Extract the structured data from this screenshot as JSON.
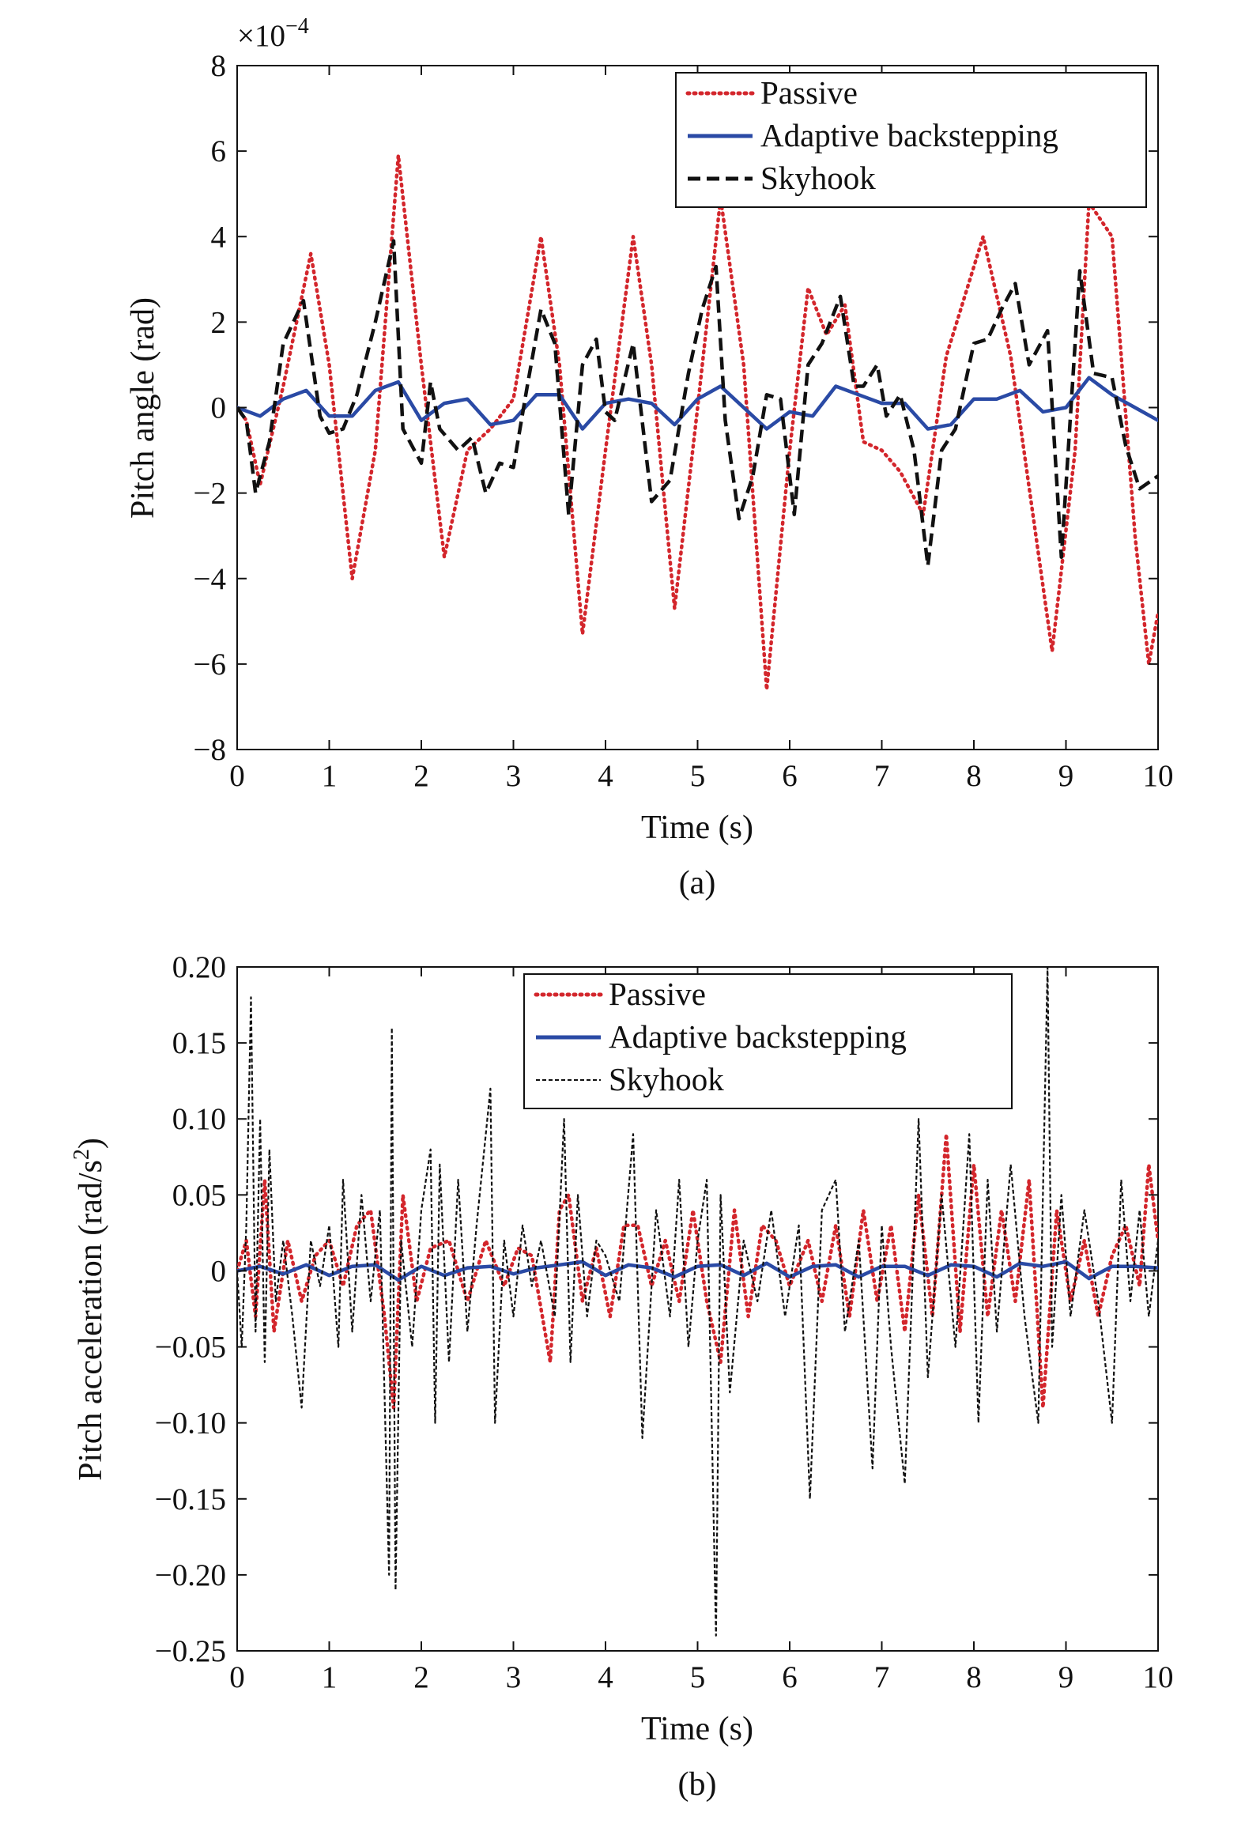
{
  "chart_data": [
    {
      "type": "line",
      "panel": "a",
      "caption": "(a)",
      "xlabel": "Time (s)",
      "ylabel": "Pitch angle (rad)",
      "y_multiplier": "×10",
      "y_multiplier_exp": "−4",
      "xlim": [
        0,
        10
      ],
      "ylim": [
        -8,
        8
      ],
      "xticks": [
        "0",
        "1",
        "2",
        "3",
        "4",
        "5",
        "6",
        "7",
        "8",
        "9",
        "10"
      ],
      "yticks": [
        "8",
        "6",
        "4",
        "2",
        "0",
        "−2",
        "−4",
        "−6",
        "−8"
      ],
      "legend_position": "top-right",
      "series": [
        {
          "name": "Passive",
          "color": "#d3262c",
          "style": "dotted",
          "x": [
            0,
            0.1,
            0.25,
            0.5,
            0.8,
            1.0,
            1.25,
            1.5,
            1.75,
            2.0,
            2.25,
            2.5,
            2.75,
            3.0,
            3.3,
            3.5,
            3.75,
            4.0,
            4.3,
            4.5,
            4.75,
            5.0,
            5.25,
            5.5,
            5.75,
            6.0,
            6.2,
            6.4,
            6.6,
            6.8,
            7.0,
            7.2,
            7.45,
            7.7,
            8.1,
            8.4,
            8.85,
            9.1,
            9.25,
            9.5,
            9.75,
            9.9,
            10.0
          ],
          "y": [
            0,
            -0.3,
            -1.8,
            0.5,
            3.6,
            1.0,
            -4.0,
            -1.0,
            5.9,
            1.0,
            -3.5,
            -1.0,
            -0.5,
            0.2,
            4.0,
            1.0,
            -5.3,
            -1.0,
            4.0,
            1.0,
            -4.7,
            0,
            4.9,
            1.0,
            -6.6,
            -1.0,
            2.8,
            1.7,
            2.4,
            -0.8,
            -1.0,
            -1.5,
            -2.5,
            1.2,
            4.0,
            1.2,
            -5.7,
            -1.0,
            4.8,
            4.0,
            -3.0,
            -6.0,
            -4.8
          ]
        },
        {
          "name": "Adaptive backstepping",
          "color": "#2a4aa5",
          "style": "solid",
          "x": [
            0,
            0.25,
            0.5,
            0.75,
            1.0,
            1.25,
            1.5,
            1.75,
            2.0,
            2.25,
            2.5,
            2.75,
            3.0,
            3.25,
            3.5,
            3.75,
            4.0,
            4.25,
            4.5,
            4.75,
            5.0,
            5.25,
            5.5,
            5.75,
            6.0,
            6.25,
            6.5,
            6.75,
            7.0,
            7.25,
            7.5,
            7.75,
            8.0,
            8.25,
            8.5,
            8.75,
            9.0,
            9.25,
            9.5,
            9.75,
            10.0
          ],
          "y": [
            0,
            -0.2,
            0.2,
            0.4,
            -0.2,
            -0.2,
            0.4,
            0.6,
            -0.3,
            0.1,
            0.2,
            -0.4,
            -0.3,
            0.3,
            0.3,
            -0.5,
            0.1,
            0.2,
            0.1,
            -0.4,
            0.2,
            0.5,
            0.0,
            -0.5,
            -0.1,
            -0.2,
            0.5,
            0.3,
            0.1,
            0.1,
            -0.5,
            -0.4,
            0.2,
            0.2,
            0.4,
            -0.1,
            0.0,
            0.7,
            0.3,
            0.0,
            -0.3
          ]
        },
        {
          "name": "Skyhook",
          "color": "#111111",
          "style": "dashed",
          "x": [
            0,
            0.1,
            0.2,
            0.35,
            0.5,
            0.72,
            0.9,
            1.0,
            1.15,
            1.3,
            1.5,
            1.7,
            1.8,
            2.0,
            2.1,
            2.2,
            2.4,
            2.55,
            2.7,
            2.85,
            3.0,
            3.15,
            3.3,
            3.45,
            3.6,
            3.75,
            3.9,
            4.0,
            4.1,
            4.3,
            4.5,
            4.7,
            4.9,
            5.05,
            5.2,
            5.3,
            5.45,
            5.6,
            5.75,
            5.9,
            6.05,
            6.2,
            6.35,
            6.55,
            6.7,
            6.8,
            6.95,
            7.05,
            7.2,
            7.35,
            7.5,
            7.65,
            7.8,
            8.0,
            8.15,
            8.3,
            8.45,
            8.6,
            8.8,
            8.95,
            9.15,
            9.3,
            9.5,
            9.65,
            9.8,
            10.0
          ],
          "y": [
            0,
            -0.3,
            -2.0,
            -0.8,
            1.5,
            2.5,
            -0.2,
            -0.6,
            -0.5,
            0.3,
            2.0,
            3.9,
            -0.5,
            -1.3,
            0.6,
            -0.5,
            -1.0,
            -0.7,
            -2.0,
            -1.3,
            -1.4,
            0.5,
            2.3,
            1.5,
            -2.5,
            1.0,
            1.6,
            -0.1,
            -0.3,
            1.5,
            -2.2,
            -1.7,
            0.8,
            2.3,
            3.3,
            -0.3,
            -2.6,
            -1.6,
            0.3,
            0.2,
            -2.5,
            1.0,
            1.5,
            2.6,
            0.5,
            0.5,
            1.0,
            -0.2,
            0.3,
            -1.0,
            -3.7,
            -1.0,
            -0.5,
            1.5,
            1.6,
            2.3,
            2.9,
            1.0,
            1.8,
            -3.5,
            3.2,
            0.8,
            0.7,
            -0.9,
            -1.9,
            -1.6
          ]
        }
      ]
    },
    {
      "type": "line",
      "panel": "b",
      "caption": "(b)",
      "xlabel": "Time (s)",
      "ylabel": "Pitch acceleration (rad/s",
      "ylabel_sup": "2",
      "ylabel_end": ")",
      "xlim": [
        0,
        10
      ],
      "ylim": [
        -0.25,
        0.2
      ],
      "xticks": [
        "0",
        "1",
        "2",
        "3",
        "4",
        "5",
        "6",
        "7",
        "8",
        "9",
        "10"
      ],
      "yticks": [
        "0.20",
        "0.15",
        "0.10",
        "0.05",
        "0",
        "−0.05",
        "−0.10",
        "−0.15",
        "−0.20",
        "−0.25"
      ],
      "legend_position": "top-center",
      "series": [
        {
          "name": "Passive",
          "color": "#d3262c",
          "style": "dotted",
          "x": [
            0,
            0.1,
            0.2,
            0.3,
            0.4,
            0.55,
            0.7,
            0.85,
            1.0,
            1.15,
            1.3,
            1.45,
            1.6,
            1.7,
            1.8,
            1.95,
            2.1,
            2.3,
            2.5,
            2.7,
            2.9,
            3.05,
            3.2,
            3.4,
            3.5,
            3.6,
            3.75,
            3.9,
            4.05,
            4.2,
            4.35,
            4.5,
            4.65,
            4.8,
            4.95,
            5.1,
            5.25,
            5.4,
            5.55,
            5.7,
            5.85,
            6.0,
            6.2,
            6.35,
            6.5,
            6.65,
            6.8,
            6.95,
            7.1,
            7.25,
            7.4,
            7.55,
            7.7,
            7.85,
            8.0,
            8.15,
            8.3,
            8.45,
            8.6,
            8.75,
            8.9,
            9.05,
            9.2,
            9.35,
            9.5,
            9.65,
            9.8,
            9.9,
            10.0
          ],
          "y": [
            0,
            0.02,
            -0.03,
            0.06,
            -0.04,
            0.02,
            -0.02,
            0.01,
            0.02,
            -0.01,
            0.03,
            0.04,
            -0.03,
            -0.09,
            0.05,
            -0.02,
            0.015,
            0.02,
            -0.02,
            0.02,
            -0.01,
            0.015,
            0.01,
            -0.06,
            0.04,
            0.05,
            -0.02,
            0.015,
            -0.03,
            0.03,
            0.03,
            -0.01,
            0.02,
            -0.02,
            0.04,
            -0.02,
            -0.06,
            0.04,
            -0.03,
            0.03,
            0.02,
            -0.01,
            0.02,
            -0.02,
            0.03,
            -0.03,
            0.04,
            -0.02,
            0.03,
            -0.04,
            0.05,
            -0.03,
            0.09,
            -0.04,
            0.07,
            -0.03,
            0.04,
            -0.02,
            0.06,
            -0.09,
            0.04,
            -0.02,
            0.02,
            -0.03,
            0.01,
            0.03,
            -0.01,
            0.07,
            0.02
          ]
        },
        {
          "name": "Adaptive backstepping",
          "color": "#2a4aa5",
          "style": "solid",
          "x": [
            0,
            0.25,
            0.5,
            0.75,
            1.0,
            1.25,
            1.5,
            1.75,
            2.0,
            2.25,
            2.5,
            2.75,
            3.0,
            3.25,
            3.5,
            3.75,
            4.0,
            4.25,
            4.5,
            4.75,
            5.0,
            5.25,
            5.5,
            5.75,
            6.0,
            6.25,
            6.5,
            6.75,
            7.0,
            7.25,
            7.5,
            7.75,
            8.0,
            8.25,
            8.5,
            8.75,
            9.0,
            9.25,
            9.5,
            9.75,
            10.0
          ],
          "y": [
            0,
            0.003,
            -0.002,
            0.004,
            -0.003,
            0.003,
            0.004,
            -0.006,
            0.003,
            -0.003,
            0.002,
            0.003,
            -0.002,
            0.002,
            0.004,
            0.006,
            -0.003,
            0.004,
            0.002,
            -0.004,
            0.003,
            0.004,
            -0.003,
            0.005,
            -0.004,
            0.003,
            0.004,
            -0.004,
            0.003,
            0.003,
            -0.003,
            0.004,
            0.003,
            -0.004,
            0.005,
            0.003,
            0.006,
            -0.005,
            0.003,
            0.003,
            0.002
          ]
        },
        {
          "name": "Skyhook",
          "color": "#111111",
          "style": "thin-dashed",
          "x": [
            0,
            0.05,
            0.1,
            0.15,
            0.2,
            0.25,
            0.3,
            0.35,
            0.42,
            0.5,
            0.6,
            0.7,
            0.8,
            0.9,
            1.0,
            1.1,
            1.15,
            1.25,
            1.35,
            1.45,
            1.55,
            1.65,
            1.68,
            1.72,
            1.78,
            1.9,
            2.0,
            2.1,
            2.15,
            2.2,
            2.3,
            2.4,
            2.5,
            2.6,
            2.75,
            2.8,
            2.9,
            3.0,
            3.1,
            3.2,
            3.3,
            3.45,
            3.55,
            3.62,
            3.7,
            3.8,
            3.9,
            4.0,
            4.15,
            4.3,
            4.4,
            4.55,
            4.7,
            4.8,
            4.9,
            5.0,
            5.1,
            5.2,
            5.25,
            5.35,
            5.5,
            5.65,
            5.8,
            5.95,
            6.1,
            6.22,
            6.35,
            6.5,
            6.6,
            6.75,
            6.9,
            7.0,
            7.1,
            7.25,
            7.4,
            7.5,
            7.65,
            7.8,
            7.95,
            8.05,
            8.15,
            8.25,
            8.4,
            8.55,
            8.7,
            8.8,
            8.85,
            8.95,
            9.05,
            9.2,
            9.35,
            9.5,
            9.6,
            9.7,
            9.8,
            9.9,
            10.0
          ],
          "y": [
            0,
            -0.05,
            0.03,
            0.18,
            -0.04,
            0.1,
            -0.06,
            0.08,
            -0.02,
            0.02,
            -0.03,
            -0.09,
            0.02,
            -0.01,
            0.03,
            -0.05,
            0.06,
            -0.04,
            0.05,
            -0.02,
            0.04,
            -0.2,
            0.16,
            -0.21,
            0.02,
            -0.05,
            0.04,
            0.08,
            -0.1,
            0.07,
            -0.06,
            0.06,
            -0.04,
            0.03,
            0.12,
            -0.1,
            0.02,
            -0.03,
            0.03,
            -0.01,
            0.02,
            -0.03,
            0.1,
            -0.06,
            0.05,
            -0.03,
            0.02,
            0.01,
            -0.02,
            0.09,
            -0.11,
            0.04,
            -0.03,
            0.06,
            -0.05,
            0.02,
            0.06,
            -0.24,
            0.05,
            -0.08,
            0.02,
            -0.02,
            0.04,
            -0.03,
            0.03,
            -0.15,
            0.04,
            0.06,
            -0.04,
            0.02,
            -0.13,
            0.03,
            -0.05,
            -0.14,
            0.1,
            -0.07,
            0.05,
            -0.05,
            0.09,
            -0.1,
            0.06,
            -0.04,
            0.07,
            -0.03,
            -0.1,
            0.2,
            -0.05,
            0.05,
            -0.03,
            0.04,
            -0.02,
            -0.1,
            0.06,
            -0.02,
            0.04,
            -0.03,
            0.02
          ]
        }
      ]
    }
  ]
}
